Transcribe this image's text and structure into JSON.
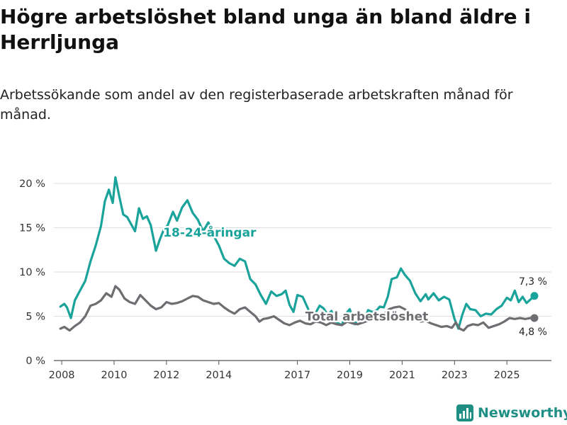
{
  "title": "Högre arbetslöshet bland unga än bland äldre i Herrljunga",
  "subtitle": "Arbetssökande som andel av den registerbaserade arbetskraften månad för månad.",
  "brand": {
    "name": "Newsworthy",
    "icon": "bar-chart-logo-icon"
  },
  "chart_data": {
    "type": "line",
    "ylim": [
      0,
      20
    ],
    "yticks": [
      0,
      5,
      10,
      15,
      20
    ],
    "ytick_labels": [
      "0 %",
      "5 %",
      "10 %",
      "15 %",
      "20 %"
    ],
    "xlim": [
      2007.7,
      2026.7
    ],
    "xticks": [
      2008,
      2010,
      2012,
      2014,
      2017,
      2019,
      2021,
      2023,
      2025
    ],
    "xtick_labels": [
      "2008",
      "2010",
      "2012",
      "2014",
      "2017",
      "2019",
      "2021",
      "2023",
      "2025"
    ],
    "grid": true,
    "series": [
      {
        "name": "18-24-åringar",
        "color": "#1aa39a",
        "end_label": "7,3 %",
        "points": [
          [
            2007.95,
            6.1
          ],
          [
            2008.1,
            6.4
          ],
          [
            2008.2,
            6.0
          ],
          [
            2008.35,
            4.8
          ],
          [
            2008.5,
            6.8
          ],
          [
            2008.7,
            7.9
          ],
          [
            2008.9,
            9.0
          ],
          [
            2009.1,
            11.2
          ],
          [
            2009.3,
            13.0
          ],
          [
            2009.5,
            15.2
          ],
          [
            2009.65,
            18.0
          ],
          [
            2009.8,
            19.3
          ],
          [
            2009.95,
            17.8
          ],
          [
            2010.05,
            20.7
          ],
          [
            2010.2,
            18.5
          ],
          [
            2010.35,
            16.5
          ],
          [
            2010.5,
            16.2
          ],
          [
            2010.65,
            15.4
          ],
          [
            2010.8,
            14.6
          ],
          [
            2010.95,
            17.2
          ],
          [
            2011.1,
            16.0
          ],
          [
            2011.25,
            16.3
          ],
          [
            2011.4,
            15.3
          ],
          [
            2011.6,
            12.4
          ],
          [
            2011.75,
            13.7
          ],
          [
            2011.9,
            14.8
          ],
          [
            2012.05,
            15.3
          ],
          [
            2012.25,
            16.8
          ],
          [
            2012.4,
            15.8
          ],
          [
            2012.6,
            17.3
          ],
          [
            2012.8,
            18.1
          ],
          [
            2013.0,
            16.7
          ],
          [
            2013.2,
            15.9
          ],
          [
            2013.4,
            14.6
          ],
          [
            2013.6,
            15.6
          ],
          [
            2013.8,
            14.1
          ],
          [
            2014.0,
            13.0
          ],
          [
            2014.2,
            11.5
          ],
          [
            2014.4,
            11.0
          ],
          [
            2014.6,
            10.7
          ],
          [
            2014.8,
            11.5
          ],
          [
            2015.0,
            11.2
          ],
          [
            2015.2,
            9.2
          ],
          [
            2015.4,
            8.6
          ],
          [
            2015.6,
            7.4
          ],
          [
            2015.8,
            6.4
          ],
          [
            2016.0,
            7.8
          ],
          [
            2016.2,
            7.3
          ],
          [
            2016.4,
            7.5
          ],
          [
            2016.55,
            7.9
          ],
          [
            2016.7,
            6.3
          ],
          [
            2016.85,
            5.5
          ],
          [
            2017.0,
            7.4
          ],
          [
            2017.2,
            7.2
          ],
          [
            2017.4,
            5.9
          ],
          [
            2017.55,
            4.6
          ],
          [
            2017.7,
            5.4
          ],
          [
            2017.85,
            6.2
          ],
          [
            2018.0,
            5.9
          ],
          [
            2018.15,
            5.2
          ],
          [
            2018.3,
            5.6
          ],
          [
            2018.5,
            4.3
          ],
          [
            2018.7,
            4.0
          ],
          [
            2018.85,
            5.3
          ],
          [
            2019.0,
            5.8
          ],
          [
            2019.2,
            4.1
          ],
          [
            2019.4,
            5.0
          ],
          [
            2019.55,
            4.6
          ],
          [
            2019.7,
            5.7
          ],
          [
            2019.85,
            5.5
          ],
          [
            2020.0,
            5.6
          ],
          [
            2020.15,
            6.1
          ],
          [
            2020.3,
            6.0
          ],
          [
            2020.45,
            7.2
          ],
          [
            2020.6,
            9.2
          ],
          [
            2020.8,
            9.4
          ],
          [
            2020.95,
            10.4
          ],
          [
            2021.1,
            9.7
          ],
          [
            2021.3,
            9.0
          ],
          [
            2021.5,
            7.6
          ],
          [
            2021.7,
            6.7
          ],
          [
            2021.9,
            7.5
          ],
          [
            2022.0,
            6.9
          ],
          [
            2022.2,
            7.6
          ],
          [
            2022.4,
            6.8
          ],
          [
            2022.6,
            7.2
          ],
          [
            2022.8,
            6.9
          ],
          [
            2023.0,
            4.7
          ],
          [
            2023.15,
            3.6
          ],
          [
            2023.3,
            5.2
          ],
          [
            2023.45,
            6.4
          ],
          [
            2023.6,
            5.8
          ],
          [
            2023.8,
            5.7
          ],
          [
            2024.0,
            5.0
          ],
          [
            2024.2,
            5.3
          ],
          [
            2024.4,
            5.2
          ],
          [
            2024.6,
            5.8
          ],
          [
            2024.8,
            6.2
          ],
          [
            2025.0,
            7.1
          ],
          [
            2025.15,
            6.8
          ],
          [
            2025.3,
            7.9
          ],
          [
            2025.45,
            6.6
          ],
          [
            2025.6,
            7.2
          ],
          [
            2025.75,
            6.5
          ],
          [
            2025.9,
            6.9
          ],
          [
            2026.05,
            7.3
          ]
        ]
      },
      {
        "name": "Total arbetslöshet",
        "color": "#6e6e72",
        "end_label": "4,8 %",
        "points": [
          [
            2007.95,
            3.6
          ],
          [
            2008.1,
            3.8
          ],
          [
            2008.3,
            3.4
          ],
          [
            2008.5,
            3.9
          ],
          [
            2008.7,
            4.3
          ],
          [
            2008.9,
            5.0
          ],
          [
            2009.1,
            6.2
          ],
          [
            2009.3,
            6.4
          ],
          [
            2009.5,
            6.8
          ],
          [
            2009.7,
            7.6
          ],
          [
            2009.9,
            7.2
          ],
          [
            2010.05,
            8.4
          ],
          [
            2010.2,
            8.0
          ],
          [
            2010.4,
            7.0
          ],
          [
            2010.6,
            6.6
          ],
          [
            2010.8,
            6.4
          ],
          [
            2011.0,
            7.4
          ],
          [
            2011.2,
            6.8
          ],
          [
            2011.4,
            6.2
          ],
          [
            2011.6,
            5.8
          ],
          [
            2011.8,
            6.0
          ],
          [
            2012.0,
            6.6
          ],
          [
            2012.2,
            6.4
          ],
          [
            2012.4,
            6.5
          ],
          [
            2012.6,
            6.7
          ],
          [
            2012.8,
            7.0
          ],
          [
            2013.0,
            7.3
          ],
          [
            2013.2,
            7.2
          ],
          [
            2013.4,
            6.8
          ],
          [
            2013.6,
            6.6
          ],
          [
            2013.8,
            6.4
          ],
          [
            2014.0,
            6.5
          ],
          [
            2014.2,
            6.0
          ],
          [
            2014.4,
            5.6
          ],
          [
            2014.6,
            5.3
          ],
          [
            2014.8,
            5.8
          ],
          [
            2015.0,
            6.0
          ],
          [
            2015.2,
            5.5
          ],
          [
            2015.4,
            5.0
          ],
          [
            2015.55,
            4.4
          ],
          [
            2015.7,
            4.7
          ],
          [
            2015.9,
            4.8
          ],
          [
            2016.1,
            5.0
          ],
          [
            2016.3,
            4.6
          ],
          [
            2016.5,
            4.2
          ],
          [
            2016.7,
            4.0
          ],
          [
            2016.9,
            4.3
          ],
          [
            2017.1,
            4.5
          ],
          [
            2017.3,
            4.2
          ],
          [
            2017.5,
            4.1
          ],
          [
            2017.7,
            4.4
          ],
          [
            2017.9,
            4.3
          ],
          [
            2018.1,
            4.0
          ],
          [
            2018.3,
            4.3
          ],
          [
            2018.5,
            4.1
          ],
          [
            2018.7,
            4.0
          ],
          [
            2018.9,
            4.4
          ],
          [
            2019.1,
            4.2
          ],
          [
            2019.3,
            4.1
          ],
          [
            2019.5,
            4.3
          ],
          [
            2019.7,
            4.5
          ],
          [
            2019.9,
            4.6
          ],
          [
            2020.1,
            4.8
          ],
          [
            2020.3,
            5.2
          ],
          [
            2020.5,
            5.8
          ],
          [
            2020.7,
            6.0
          ],
          [
            2020.9,
            6.1
          ],
          [
            2021.1,
            5.8
          ],
          [
            2021.3,
            5.3
          ],
          [
            2021.5,
            4.7
          ],
          [
            2021.7,
            4.4
          ],
          [
            2021.9,
            4.5
          ],
          [
            2022.1,
            4.2
          ],
          [
            2022.3,
            4.0
          ],
          [
            2022.5,
            3.8
          ],
          [
            2022.7,
            3.9
          ],
          [
            2022.9,
            3.7
          ],
          [
            2023.05,
            4.3
          ],
          [
            2023.2,
            3.6
          ],
          [
            2023.35,
            3.4
          ],
          [
            2023.5,
            3.9
          ],
          [
            2023.7,
            4.1
          ],
          [
            2023.9,
            4.0
          ],
          [
            2024.1,
            4.3
          ],
          [
            2024.3,
            3.7
          ],
          [
            2024.5,
            3.9
          ],
          [
            2024.7,
            4.1
          ],
          [
            2024.9,
            4.4
          ],
          [
            2025.1,
            4.8
          ],
          [
            2025.3,
            4.7
          ],
          [
            2025.5,
            4.8
          ],
          [
            2025.7,
            4.7
          ],
          [
            2025.9,
            4.8
          ],
          [
            2026.05,
            4.8
          ]
        ]
      }
    ],
    "annotations": [
      {
        "text": "18-24-åringar",
        "series": 0,
        "x": 2013.65,
        "y": 14.5
      },
      {
        "text": "Total arbetslöshet",
        "series": 1,
        "x": 2019.65,
        "y": 5.0
      }
    ]
  }
}
